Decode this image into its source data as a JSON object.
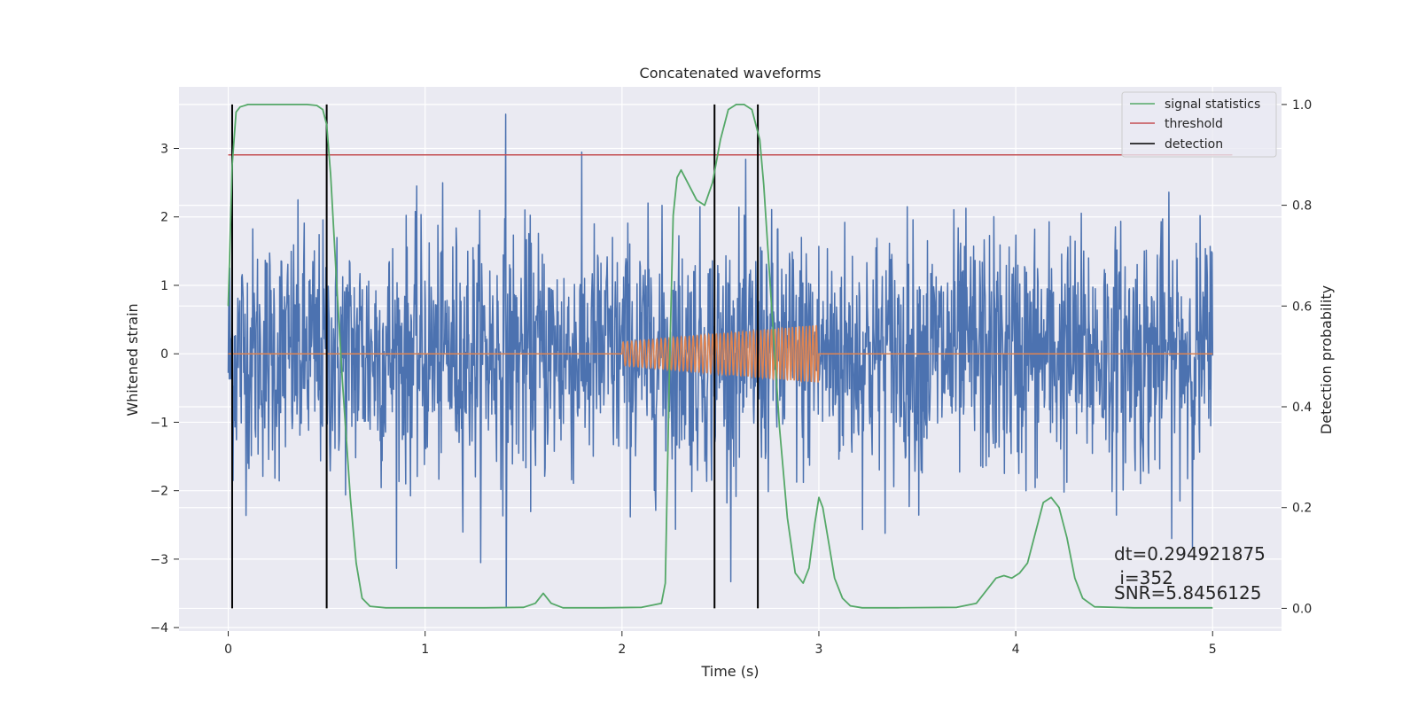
{
  "chart_data": {
    "type": "line",
    "title": "Concatenated waveforms",
    "xlabel": "Time (s)",
    "ylabel": "Whitened strain",
    "y2label": "Detection probability",
    "xlim": [
      -0.25,
      5.35
    ],
    "ylim": [
      -4.05,
      3.9
    ],
    "y2lim": [
      -0.045,
      1.035
    ],
    "x_ticks": [
      0,
      1,
      2,
      3,
      4,
      5
    ],
    "y_ticks": [
      -4,
      -3,
      -2,
      -1,
      0,
      1,
      2,
      3
    ],
    "y2_ticks": [
      0.0,
      0.2,
      0.4,
      0.6,
      0.8,
      1.0
    ],
    "x_tick_labels": [
      "0",
      "1",
      "2",
      "3",
      "4",
      "5"
    ],
    "y_tick_labels": [
      "−4",
      "−3",
      "−2",
      "−1",
      "0",
      "1",
      "2",
      "3"
    ],
    "y2_tick_labels": [
      "0.0",
      "0.2",
      "0.4",
      "0.6",
      "0.8",
      "1.0"
    ],
    "grid": true,
    "legend_position": "top-right",
    "legend": [
      "signal statistics",
      "threshold",
      "detection"
    ],
    "colors": {
      "noise": "#4c72b0",
      "signal": "#dd8452",
      "statistics": "#55a868",
      "threshold": "#c44e52",
      "detection": "#000000",
      "axes_bg": "#eaeaf2",
      "grid": "#ffffff"
    },
    "noise": {
      "x_range": [
        0,
        5
      ],
      "samples": 2048,
      "envelope_y": [
        -3.7,
        3.5
      ],
      "spike_max": {
        "x": 1.41,
        "y": 3.5
      },
      "spike_min": {
        "x": 1.41,
        "y": -3.7
      }
    },
    "injected_signal": {
      "x_range": [
        2.0,
        3.0
      ],
      "amplitude_start": 0.17,
      "amplitude_end": 0.42,
      "cycles": 52,
      "baseline": 0
    },
    "threshold": {
      "x": [
        0,
        5.1
      ],
      "y2": 0.9
    },
    "detections_x": [
      0.02,
      0.5,
      2.47,
      2.69
    ],
    "statistics": {
      "x": [
        0,
        0.02,
        0.04,
        0.06,
        0.1,
        0.2,
        0.3,
        0.4,
        0.45,
        0.48,
        0.5,
        0.52,
        0.55,
        0.58,
        0.62,
        0.65,
        0.68,
        0.72,
        0.8,
        1.0,
        1.3,
        1.5,
        1.56,
        1.6,
        1.64,
        1.7,
        1.9,
        2.1,
        2.2,
        2.22,
        2.24,
        2.26,
        2.28,
        2.3,
        2.34,
        2.38,
        2.42,
        2.46,
        2.5,
        2.54,
        2.58,
        2.62,
        2.66,
        2.7,
        2.72,
        2.74,
        2.76,
        2.78,
        2.8,
        2.84,
        2.88,
        2.92,
        2.95,
        2.98,
        3.0,
        3.02,
        3.05,
        3.08,
        3.12,
        3.16,
        3.22,
        3.4,
        3.7,
        3.8,
        3.86,
        3.9,
        3.94,
        3.98,
        4.02,
        4.06,
        4.1,
        4.14,
        4.18,
        4.22,
        4.26,
        4.3,
        4.34,
        4.4,
        4.6,
        5.0
      ],
      "y2": [
        0.6,
        0.88,
        0.985,
        0.995,
        1.0,
        1.0,
        1.0,
        1.0,
        0.998,
        0.99,
        0.96,
        0.86,
        0.65,
        0.45,
        0.22,
        0.09,
        0.02,
        0.004,
        0.001,
        0.001,
        0.001,
        0.002,
        0.01,
        0.03,
        0.01,
        0.001,
        0.001,
        0.002,
        0.01,
        0.05,
        0.45,
        0.78,
        0.855,
        0.87,
        0.84,
        0.81,
        0.8,
        0.845,
        0.93,
        0.99,
        1.0,
        1.0,
        0.99,
        0.93,
        0.84,
        0.72,
        0.6,
        0.48,
        0.36,
        0.18,
        0.07,
        0.05,
        0.08,
        0.17,
        0.22,
        0.2,
        0.13,
        0.06,
        0.02,
        0.005,
        0.001,
        0.001,
        0.002,
        0.01,
        0.04,
        0.06,
        0.065,
        0.06,
        0.07,
        0.09,
        0.15,
        0.21,
        0.22,
        0.2,
        0.14,
        0.06,
        0.02,
        0.003,
        0.001,
        0.001
      ]
    },
    "annotations": {
      "dt": "dt=0.294921875",
      "i": " i=352",
      "snr": "SNR=5.8456125"
    }
  }
}
